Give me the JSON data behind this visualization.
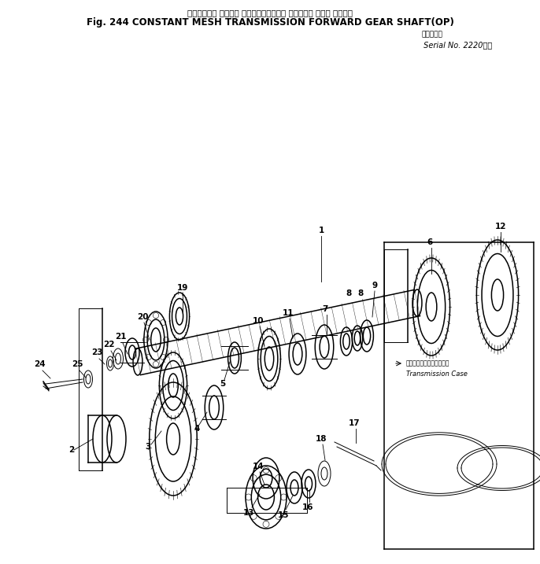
{
  "title_jp": "コンスタント メッシュ トランスミッション フォワード ギヤー シャフト",
  "title_en": "Fig. 244 CONSTANT MESH TRANSMISSION FORWARD GEAR SHAFT(OP)",
  "serial_jp": "適用号機",
  "serial_en": "Serial No. 2220～",
  "transmission_case_jp": "トランスミッションケース",
  "transmission_case_en": "Transmission Case",
  "bg_color": "#ffffff",
  "line_color": "#000000",
  "fig_width": 6.86,
  "fig_height": 7.17
}
